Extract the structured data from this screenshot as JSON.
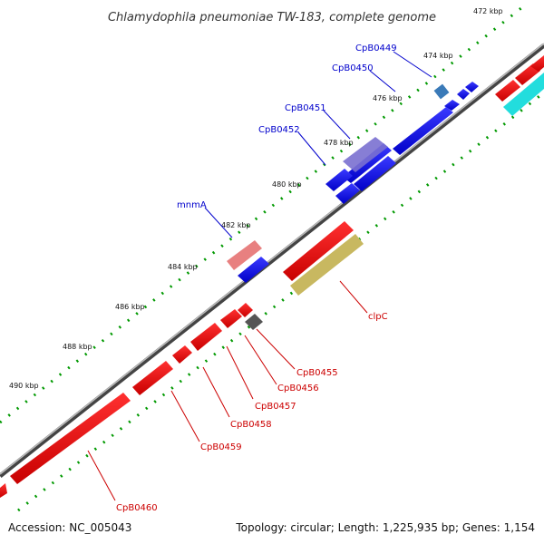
{
  "title": "Chlamydophila pneumoniae TW-183, complete genome",
  "footer": {
    "accession": "Accession: NC_005043",
    "summary": "Topology: circular; Length: 1,225,935 bp; Genes: 1,154"
  },
  "ticks": [
    "472 kbp",
    "474 kbp",
    "476 kbp",
    "478 kbp",
    "480 kbp",
    "482 kbp",
    "484 kbp",
    "486 kbp",
    "488 kbp",
    "490 kbp"
  ],
  "genes_top": [
    "CpB0449",
    "CpB0450",
    "CpB0451",
    "CpB0452",
    "mnmA"
  ],
  "genes_bottom": [
    "clpC",
    "CpB0455",
    "CpB0456",
    "CpB0457",
    "CpB0458",
    "CpB0459",
    "CpB0460"
  ],
  "colors": {
    "forward": "#0000ee",
    "reverse": "#ee0000",
    "backbone": "#777777",
    "dots": "#009900"
  }
}
